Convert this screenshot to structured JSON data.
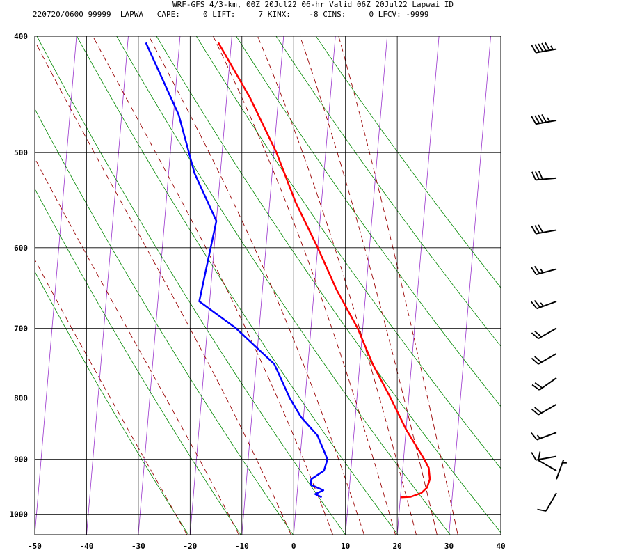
{
  "header": {
    "line1": "WRF-GFS 4/3-km, 00Z 20Jul22 06-hr Valid 06Z 20Jul22 Lapwai ID",
    "line2": "220720/0600 99999  LAPWA   CAPE:     0 LIFT:     7 KINX:    -8 CINS:     0 LFCV: -9999"
  },
  "chart_data": {
    "type": "line",
    "chart_kind": "skew-T log-P sounding",
    "xlabel": "",
    "ylabel": "",
    "xlim": [
      -50,
      40
    ],
    "ylim": [
      1040,
      400
    ],
    "y_scale": "log",
    "grid": true,
    "x_ticks": [
      -50,
      -40,
      -30,
      -20,
      -10,
      0,
      10,
      20,
      30,
      40
    ],
    "x_tick_labels": [
      "-50",
      "-40",
      "-30",
      "-20",
      "-10",
      "0",
      "10",
      "20",
      "30",
      "40"
    ],
    "y_ticks": [
      400,
      500,
      600,
      700,
      800,
      900,
      1000
    ],
    "y_tick_labels": [
      "400",
      "500",
      "600",
      "700",
      "800",
      "900",
      "1000"
    ],
    "series": [
      {
        "color": "#ff0000",
        "points": [
          {
            "p": 968,
            "t": 20.0
          },
          {
            "p": 967,
            "t": 22.0
          },
          {
            "p": 960,
            "t": 24.0
          },
          {
            "p": 950,
            "t": 25.0
          },
          {
            "p": 935,
            "t": 25.4
          },
          {
            "p": 915,
            "t": 25.0
          },
          {
            "p": 900,
            "t": 24.0
          },
          {
            "p": 850,
            "t": 20.0
          },
          {
            "p": 800,
            "t": 16.5
          },
          {
            "p": 750,
            "t": 12.5
          },
          {
            "p": 700,
            "t": 9.0
          },
          {
            "p": 650,
            "t": 4.3
          },
          {
            "p": 600,
            "t": 0.0
          },
          {
            "p": 550,
            "t": -5.0
          },
          {
            "p": 500,
            "t": -9.5
          },
          {
            "p": 450,
            "t": -15.5
          },
          {
            "p": 405,
            "t": -22.5
          }
        ]
      },
      {
        "color": "#0000ff",
        "points": [
          {
            "p": 968,
            "t": 4.8
          },
          {
            "p": 962,
            "t": 3.5
          },
          {
            "p": 955,
            "t": 5.0
          },
          {
            "p": 945,
            "t": 2.5
          },
          {
            "p": 935,
            "t": 2.5
          },
          {
            "p": 920,
            "t": 4.8
          },
          {
            "p": 900,
            "t": 5.3
          },
          {
            "p": 860,
            "t": 3.0
          },
          {
            "p": 830,
            "t": -0.5
          },
          {
            "p": 800,
            "t": -3.0
          },
          {
            "p": 750,
            "t": -6.5
          },
          {
            "p": 700,
            "t": -14.5
          },
          {
            "p": 665,
            "t": -22.0
          },
          {
            "p": 570,
            "t": -20.0
          },
          {
            "p": 520,
            "t": -25.0
          },
          {
            "p": 465,
            "t": -29.0
          },
          {
            "p": 405,
            "t": -36.5
          }
        ]
      }
    ],
    "isotherm_step": 10,
    "dry_adiabats_theta_K": [
      250,
      260,
      270,
      280,
      290,
      300,
      310,
      320,
      330,
      340,
      350
    ],
    "moist_adiabats_C": [
      -20,
      -10,
      0,
      8,
      14,
      20,
      24,
      28,
      32
    ],
    "mixing_ratio_g_kg": [
      0.4,
      1,
      2,
      3,
      5,
      8,
      12,
      20
    ],
    "wind_barbs": [
      {
        "p": 410,
        "dir": 260,
        "spd": 55
      },
      {
        "p": 470,
        "dir": 260,
        "spd": 45
      },
      {
        "p": 525,
        "dir": 265,
        "spd": 30
      },
      {
        "p": 580,
        "dir": 260,
        "spd": 30
      },
      {
        "p": 625,
        "dir": 255,
        "spd": 25
      },
      {
        "p": 665,
        "dir": 250,
        "spd": 25
      },
      {
        "p": 700,
        "dir": 240,
        "spd": 20
      },
      {
        "p": 735,
        "dir": 240,
        "spd": 20
      },
      {
        "p": 770,
        "dir": 235,
        "spd": 20
      },
      {
        "p": 810,
        "dir": 240,
        "spd": 20
      },
      {
        "p": 855,
        "dir": 250,
        "spd": 15
      },
      {
        "p": 895,
        "dir": 260,
        "spd": 10
      },
      {
        "p": 920,
        "dir": 300,
        "spd": 10
      },
      {
        "p": 935,
        "dir": 20,
        "spd": 5
      },
      {
        "p": 960,
        "dir": 210,
        "spd": 10
      }
    ]
  }
}
